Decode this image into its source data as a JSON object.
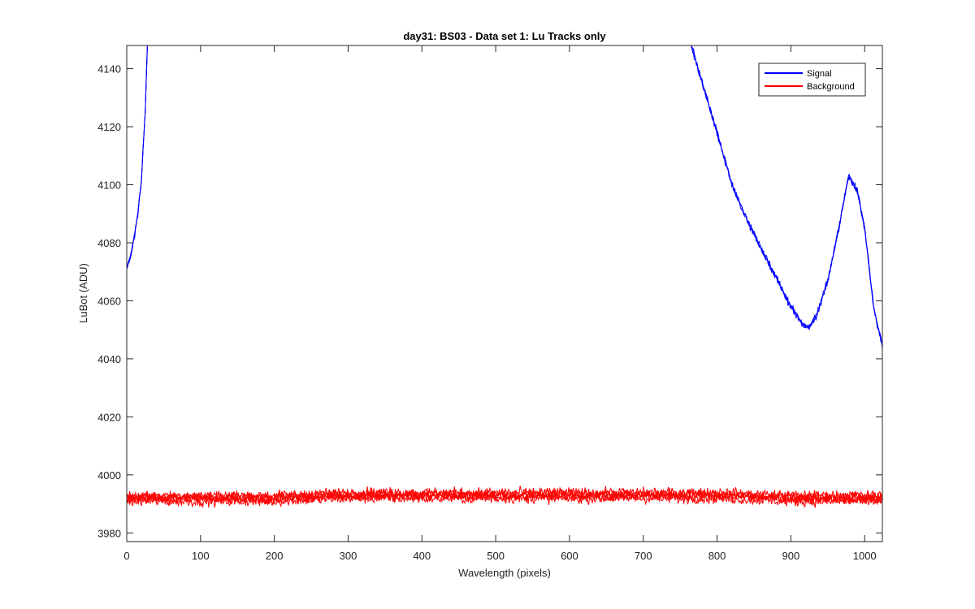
{
  "chart_data": {
    "type": "line",
    "title": "day31: BS03 - Data set 1: Lu Tracks only",
    "xlabel": "Wavelength (pixels)",
    "ylabel": "LuBot (ADU)",
    "xlim": [
      0,
      1024
    ],
    "ylim": [
      3977,
      4148
    ],
    "xticks": [
      0,
      100,
      200,
      300,
      400,
      500,
      600,
      700,
      800,
      900,
      1000
    ],
    "yticks": [
      3980,
      4000,
      4020,
      4040,
      4060,
      4080,
      4100,
      4120,
      4140
    ],
    "grid": false,
    "legend_position": "top-right",
    "series": [
      {
        "name": "Signal",
        "color": "#0000ff",
        "segments": [
          {
            "x": [
              0,
              5,
              10,
              15,
              20,
              25,
              28
            ],
            "y": [
              4071,
              4075,
              4082,
              4090,
              4102,
              4125,
              4148
            ]
          },
          {
            "x": [
              765,
              780,
              800,
              820,
              840,
              860,
              880,
              900,
              915,
              925,
              935,
              950,
              965,
              978,
              990,
              1000,
              1012,
              1024
            ],
            "y": [
              4148,
              4135,
              4118,
              4100,
              4088,
              4078,
              4068,
              4058,
              4052,
              4051,
              4055,
              4067,
              4085,
              4103,
              4098,
              4085,
              4058,
              4044
            ]
          }
        ]
      },
      {
        "name": "Background",
        "color": "#ff0000",
        "x": [
          0,
          100,
          200,
          300,
          400,
          500,
          600,
          700,
          800,
          900,
          1000,
          1024
        ],
        "y": [
          3992,
          3992,
          3992,
          3993,
          3993,
          3993,
          3993,
          3993,
          3993,
          3992,
          3992,
          3992
        ]
      }
    ]
  }
}
